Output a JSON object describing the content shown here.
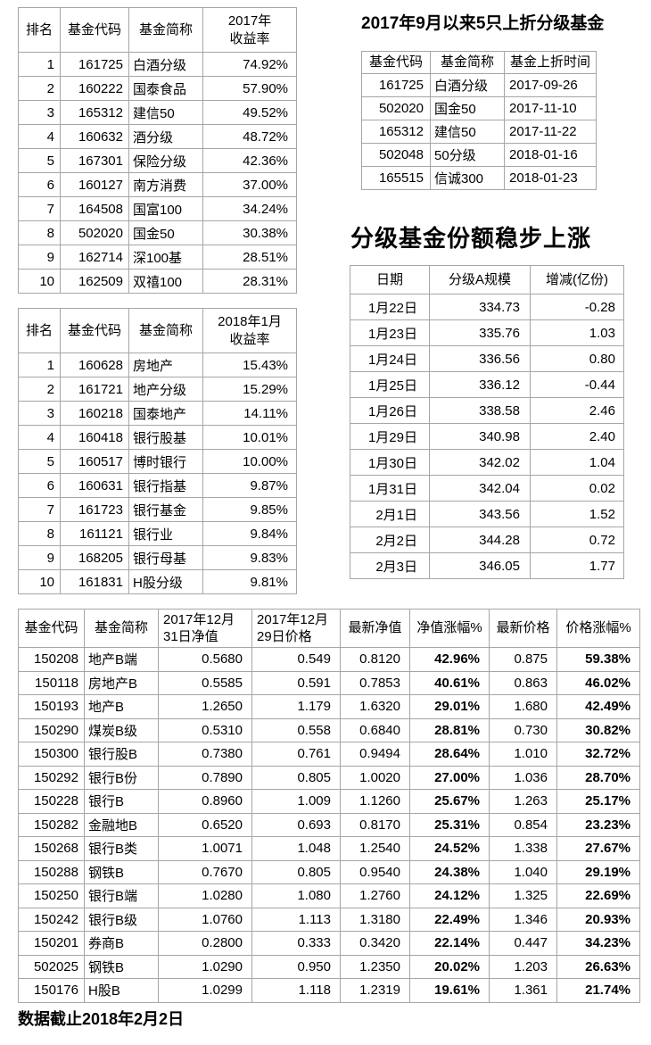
{
  "titles": {
    "upfold": "2017年9月以来5只上折分级基金",
    "share_growth": "分级基金份额稳步上涨"
  },
  "footer": {
    "note": "数据截止2018年2月2日"
  },
  "colors": {
    "border": "#a6a6a6",
    "text": "#000000",
    "background": "#ffffff"
  },
  "tables": {
    "rank_2017": {
      "headers": [
        "排名",
        "基金代码",
        "基金简称",
        "2017年\n收益率"
      ],
      "rows": [
        [
          "1",
          "161725",
          "白酒分级",
          "74.92%"
        ],
        [
          "2",
          "160222",
          "国泰食品",
          "57.90%"
        ],
        [
          "3",
          "165312",
          "建信50",
          "49.52%"
        ],
        [
          "4",
          "160632",
          "酒分级",
          "48.72%"
        ],
        [
          "5",
          "167301",
          "保险分级",
          "42.36%"
        ],
        [
          "6",
          "160127",
          "南方消费",
          "37.00%"
        ],
        [
          "7",
          "164508",
          "国富100",
          "34.24%"
        ],
        [
          "8",
          "502020",
          "国金50",
          "30.38%"
        ],
        [
          "9",
          "162714",
          "深100基",
          "28.51%"
        ],
        [
          "10",
          "162509",
          "双禧100",
          "28.31%"
        ]
      ]
    },
    "upfold_funds": {
      "headers": [
        "基金代码",
        "基金简称",
        "基金上折时间"
      ],
      "rows": [
        [
          "161725",
          "白酒分级",
          "2017-09-26"
        ],
        [
          "502020",
          "国金50",
          "2017-11-10"
        ],
        [
          "165312",
          "建信50",
          "2017-11-22"
        ],
        [
          "502048",
          "50分级",
          "2018-01-16"
        ],
        [
          "165515",
          "信诚300",
          "2018-01-23"
        ]
      ]
    },
    "share_scale": {
      "headers": [
        "日期",
        "分级A规模",
        "增减(亿份)"
      ],
      "rows": [
        [
          "1月22日",
          "334.73",
          "-0.28"
        ],
        [
          "1月23日",
          "335.76",
          "1.03"
        ],
        [
          "1月24日",
          "336.56",
          "0.80"
        ],
        [
          "1月25日",
          "336.12",
          "-0.44"
        ],
        [
          "1月26日",
          "338.58",
          "2.46"
        ],
        [
          "1月29日",
          "340.98",
          "2.40"
        ],
        [
          "1月30日",
          "342.02",
          "1.04"
        ],
        [
          "1月31日",
          "342.04",
          "0.02"
        ],
        [
          "2月1日",
          "343.56",
          "1.52"
        ],
        [
          "2月2日",
          "344.28",
          "0.72"
        ],
        [
          "2月3日",
          "346.05",
          "1.77"
        ]
      ]
    },
    "rank_2018jan": {
      "headers": [
        "排名",
        "基金代码",
        "基金简称",
        "2018年1月\n收益率"
      ],
      "rows": [
        [
          "1",
          "160628",
          "房地产",
          "15.43%"
        ],
        [
          "2",
          "161721",
          "地产分级",
          "15.29%"
        ],
        [
          "3",
          "160218",
          "国泰地产",
          "14.11%"
        ],
        [
          "4",
          "160418",
          "银行股基",
          "10.01%"
        ],
        [
          "5",
          "160517",
          "博时银行",
          "10.00%"
        ],
        [
          "6",
          "160631",
          "银行指基",
          "9.87%"
        ],
        [
          "7",
          "161723",
          "银行基金",
          "9.85%"
        ],
        [
          "8",
          "161121",
          "银行业",
          "9.84%"
        ],
        [
          "9",
          "168205",
          "银行母基",
          "9.83%"
        ],
        [
          "10",
          "161831",
          "H股分级",
          "9.81%"
        ]
      ]
    },
    "b_fund_detail": {
      "headers": [
        "基金代码",
        "基金简称",
        "2017年12月\n31日净值",
        "2017年12月\n29日价格",
        "最新净值",
        "净值涨幅%",
        "最新价格",
        "价格涨幅%"
      ],
      "rows": [
        [
          "150208",
          "地产B端",
          "0.5680",
          "0.549",
          "0.8120",
          "42.96%",
          "0.875",
          "59.38%"
        ],
        [
          "150118",
          "房地产B",
          "0.5585",
          "0.591",
          "0.7853",
          "40.61%",
          "0.863",
          "46.02%"
        ],
        [
          "150193",
          "地产B",
          "1.2650",
          "1.179",
          "1.6320",
          "29.01%",
          "1.680",
          "42.49%"
        ],
        [
          "150290",
          "煤炭B级",
          "0.5310",
          "0.558",
          "0.6840",
          "28.81%",
          "0.730",
          "30.82%"
        ],
        [
          "150300",
          "银行股B",
          "0.7380",
          "0.761",
          "0.9494",
          "28.64%",
          "1.010",
          "32.72%"
        ],
        [
          "150292",
          "银行B份",
          "0.7890",
          "0.805",
          "1.0020",
          "27.00%",
          "1.036",
          "28.70%"
        ],
        [
          "150228",
          "银行B",
          "0.8960",
          "1.009",
          "1.1260",
          "25.67%",
          "1.263",
          "25.17%"
        ],
        [
          "150282",
          "金融地B",
          "0.6520",
          "0.693",
          "0.8170",
          "25.31%",
          "0.854",
          "23.23%"
        ],
        [
          "150268",
          "银行B类",
          "1.0071",
          "1.048",
          "1.2540",
          "24.52%",
          "1.338",
          "27.67%"
        ],
        [
          "150288",
          "钢铁B",
          "0.7670",
          "0.805",
          "0.9540",
          "24.38%",
          "1.040",
          "29.19%"
        ],
        [
          "150250",
          "银行B端",
          "1.0280",
          "1.080",
          "1.2760",
          "24.12%",
          "1.325",
          "22.69%"
        ],
        [
          "150242",
          "银行B级",
          "1.0760",
          "1.113",
          "1.3180",
          "22.49%",
          "1.346",
          "20.93%"
        ],
        [
          "150201",
          "券商B",
          "0.2800",
          "0.333",
          "0.3420",
          "22.14%",
          "0.447",
          "34.23%"
        ],
        [
          "502025",
          "钢铁B",
          "1.0290",
          "0.950",
          "1.2350",
          "20.02%",
          "1.203",
          "26.63%"
        ],
        [
          "150176",
          "H股B",
          "1.0299",
          "1.118",
          "1.2319",
          "19.61%",
          "1.361",
          "21.74%"
        ]
      ]
    }
  }
}
